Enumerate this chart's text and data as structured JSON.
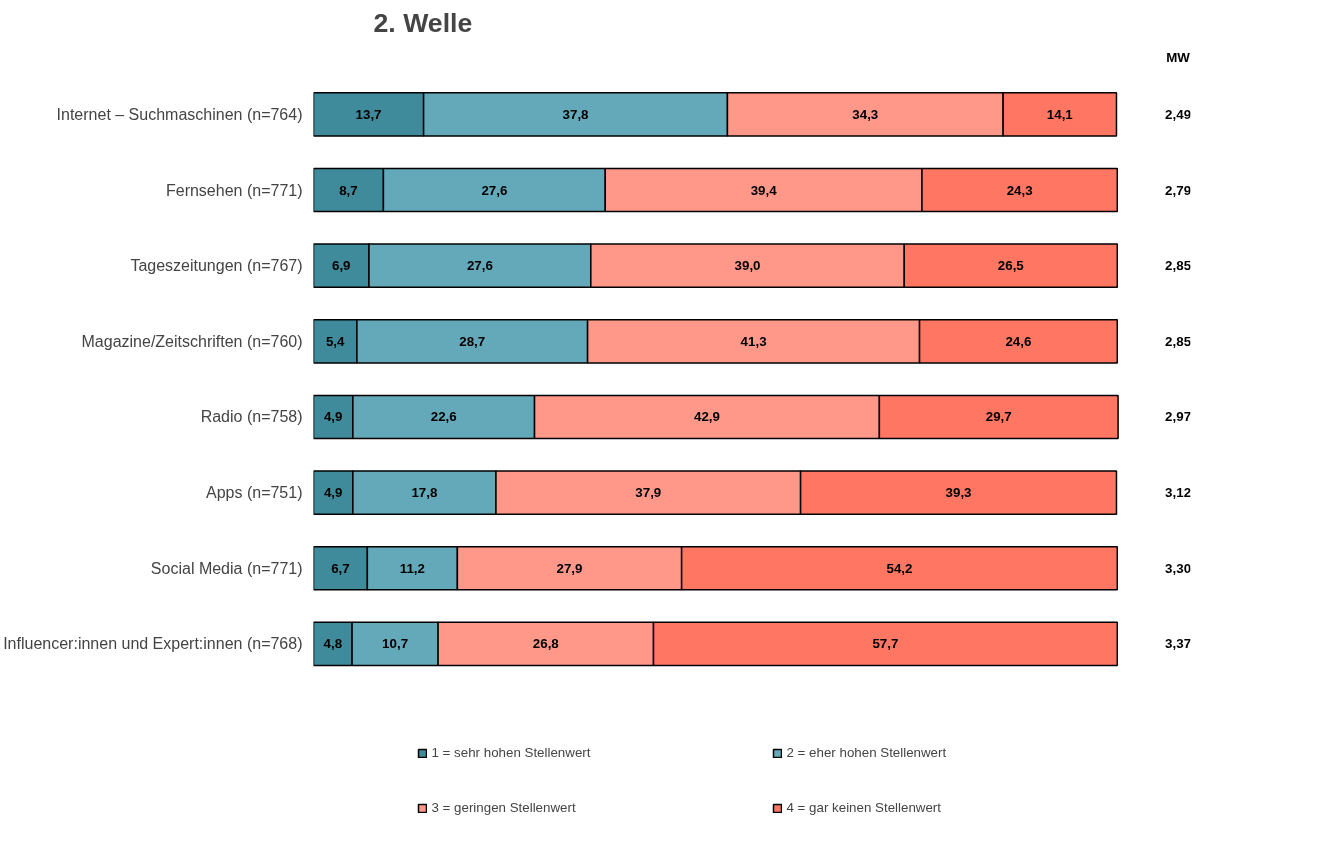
{
  "chart_data": {
    "type": "bar",
    "orientation": "horizontal",
    "stacked": true,
    "title": "2. Welle",
    "categories": [
      "Internet – Suchmaschinen (n=764)",
      "Fernsehen (n=771)",
      "Tageszeitungen (n=767)",
      "Magazine/Zeitschriften (n=760)",
      "Radio (n=758)",
      "Apps (n=751)",
      "Social Media (n=771)",
      "Influencer:innen und Expert:innen (n=768)"
    ],
    "series": [
      {
        "name": "1 = sehr hohen Stellenwert",
        "color": "#3f8a9b",
        "values": [
          13.7,
          8.7,
          6.9,
          5.4,
          4.9,
          4.9,
          6.7,
          4.8
        ],
        "value_labels": [
          "13,7",
          "8,7",
          "6,9",
          "5,4",
          "4,9",
          "4,9",
          "6,7",
          "4,8"
        ]
      },
      {
        "name": "2 = eher hohen Stellenwert",
        "color": "#64a9b9",
        "values": [
          37.8,
          27.6,
          27.6,
          28.7,
          22.6,
          17.8,
          11.2,
          10.7
        ],
        "value_labels": [
          "37,8",
          "27,6",
          "27,6",
          "28,7",
          "22,6",
          "17,8",
          "11,2",
          "10,7"
        ]
      },
      {
        "name": "3 = geringen Stellenwert",
        "color": "#ff9888",
        "values": [
          34.3,
          39.4,
          39.0,
          41.3,
          42.9,
          37.9,
          27.9,
          26.8
        ],
        "value_labels": [
          "34,3",
          "39,4",
          "39,0",
          "41,3",
          "42,9",
          "37,9",
          "27,9",
          "26,8"
        ]
      },
      {
        "name": "4 = gar keinen Stellenwert",
        "color": "#ff7663",
        "values": [
          14.1,
          24.3,
          26.5,
          24.6,
          29.7,
          39.3,
          54.2,
          57.7
        ],
        "value_labels": [
          "14,1",
          "24,3",
          "26,5",
          "24,6",
          "29,7",
          "39,3",
          "54,2",
          "57,7"
        ]
      }
    ],
    "legend": "bottom",
    "grid": false,
    "annotations": [
      "MW",
      "2,49",
      "2,79",
      "2,85",
      "2,85",
      "2,97",
      "3,12",
      "3,30",
      "3,37"
    ]
  }
}
